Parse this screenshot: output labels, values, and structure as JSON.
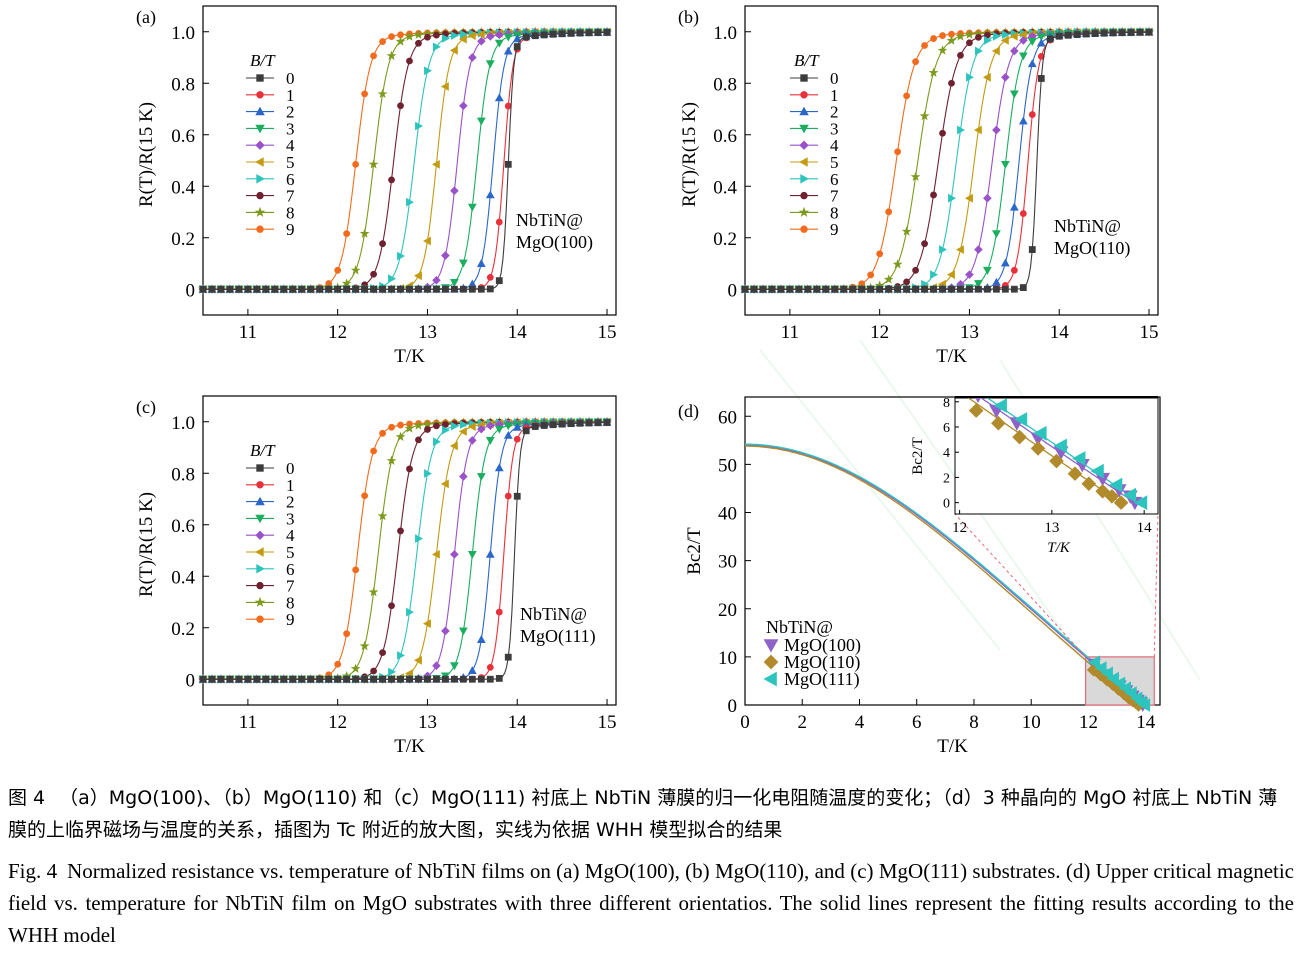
{
  "chart_data": [
    {
      "type": "line",
      "panel_label": "(a)",
      "xlabel": "T/K",
      "ylabel": "R(T)/R(15 K)",
      "xlim": [
        10.5,
        15.1
      ],
      "ylim": [
        -0.1,
        1.1
      ],
      "xticks": [
        "11",
        "12",
        "13",
        "14",
        "15"
      ],
      "yticks": [
        "0",
        "0.2",
        "0.4",
        "0.6",
        "0.8",
        "1.0"
      ],
      "legend_title": "B/T",
      "legend_placement": "top-left",
      "annotation": [
        "NbTiN@",
        "MgO(100)"
      ],
      "series": [
        {
          "name": "0",
          "color": "#3c3c3c",
          "marker": "square",
          "tc": 13.9,
          "width": 0.03
        },
        {
          "name": "1",
          "color": "#e8313a",
          "marker": "circle",
          "tc": 13.85,
          "width": 0.05
        },
        {
          "name": "2",
          "color": "#2a67c9",
          "marker": "triangle-up",
          "tc": 13.73,
          "width": 0.06
        },
        {
          "name": "3",
          "color": "#1aae5f",
          "marker": "triangle-down",
          "tc": 13.55,
          "width": 0.07
        },
        {
          "name": "4",
          "color": "#9a52c8",
          "marker": "diamond",
          "tc": 13.33,
          "width": 0.07
        },
        {
          "name": "5",
          "color": "#c39a12",
          "marker": "triangle-left",
          "tc": 13.1,
          "width": 0.07
        },
        {
          "name": "6",
          "color": "#2ec4be",
          "marker": "triangle-right",
          "tc": 12.85,
          "width": 0.08
        },
        {
          "name": "7",
          "color": "#6e2230",
          "marker": "circle",
          "tc": 12.62,
          "width": 0.08
        },
        {
          "name": "8",
          "color": "#7d9a1e",
          "marker": "star",
          "tc": 12.4,
          "width": 0.08
        },
        {
          "name": "9",
          "color": "#f26b1d",
          "marker": "circle",
          "tc": 12.2,
          "width": 0.08
        }
      ]
    },
    {
      "type": "line",
      "panel_label": "(b)",
      "xlabel": "T/K",
      "ylabel": "R(T)/R(15 K)",
      "xlim": [
        10.5,
        15.1
      ],
      "ylim": [
        -0.1,
        1.1
      ],
      "xticks": [
        "11",
        "12",
        "13",
        "14",
        "15"
      ],
      "yticks": [
        "0",
        "0.2",
        "0.4",
        "0.6",
        "0.8",
        "1.0"
      ],
      "legend_title": "B/T",
      "legend_placement": "top-left",
      "annotation": [
        "NbTiN@",
        "MgO(110)"
      ],
      "series": [
        {
          "name": "0",
          "color": "#3c3c3c",
          "marker": "square",
          "tc": 13.75,
          "width": 0.03
        },
        {
          "name": "1",
          "color": "#e8313a",
          "marker": "circle",
          "tc": 13.65,
          "width": 0.06
        },
        {
          "name": "2",
          "color": "#2a67c9",
          "marker": "triangle-up",
          "tc": 13.55,
          "width": 0.07
        },
        {
          "name": "3",
          "color": "#1aae5f",
          "marker": "triangle-down",
          "tc": 13.4,
          "width": 0.08
        },
        {
          "name": "4",
          "color": "#9a52c8",
          "marker": "diamond",
          "tc": 13.25,
          "width": 0.09
        },
        {
          "name": "5",
          "color": "#c39a12",
          "marker": "triangle-left",
          "tc": 13.05,
          "width": 0.09
        },
        {
          "name": "6",
          "color": "#2ec4be",
          "marker": "triangle-right",
          "tc": 12.85,
          "width": 0.09
        },
        {
          "name": "7",
          "color": "#6e2230",
          "marker": "circle",
          "tc": 12.65,
          "width": 0.1
        },
        {
          "name": "8",
          "color": "#7d9a1e",
          "marker": "star",
          "tc": 12.42,
          "width": 0.1
        },
        {
          "name": "9",
          "color": "#f26b1d",
          "marker": "circle",
          "tc": 12.18,
          "width": 0.1
        }
      ]
    },
    {
      "type": "line",
      "panel_label": "(c)",
      "xlabel": "T/K",
      "ylabel": "R(T)/R(15 K)",
      "xlim": [
        10.5,
        15.1
      ],
      "ylim": [
        -0.1,
        1.1
      ],
      "xticks": [
        "11",
        "12",
        "13",
        "14",
        "15"
      ],
      "yticks": [
        "0",
        "0.2",
        "0.4",
        "0.6",
        "0.8",
        "1.0"
      ],
      "legend_title": "B/T",
      "legend_placement": "top-left",
      "annotation": [
        "NbTiN@",
        "MgO(111)"
      ],
      "series": [
        {
          "name": "0",
          "color": "#3c3c3c",
          "marker": "square",
          "tc": 13.97,
          "width": 0.03
        },
        {
          "name": "1",
          "color": "#e8313a",
          "marker": "circle",
          "tc": 13.85,
          "width": 0.05
        },
        {
          "name": "2",
          "color": "#2a67c9",
          "marker": "triangle-up",
          "tc": 13.7,
          "width": 0.06
        },
        {
          "name": "3",
          "color": "#1aae5f",
          "marker": "triangle-down",
          "tc": 13.5,
          "width": 0.07
        },
        {
          "name": "4",
          "color": "#9a52c8",
          "marker": "diamond",
          "tc": 13.3,
          "width": 0.07
        },
        {
          "name": "5",
          "color": "#c39a12",
          "marker": "triangle-left",
          "tc": 13.1,
          "width": 0.08
        },
        {
          "name": "6",
          "color": "#2ec4be",
          "marker": "triangle-right",
          "tc": 12.88,
          "width": 0.08
        },
        {
          "name": "7",
          "color": "#6e2230",
          "marker": "circle",
          "tc": 12.67,
          "width": 0.08
        },
        {
          "name": "8",
          "color": "#7d9a1e",
          "marker": "star",
          "tc": 12.45,
          "width": 0.08
        },
        {
          "name": "9",
          "color": "#f26b1d",
          "marker": "circle",
          "tc": 12.22,
          "width": 0.08
        }
      ]
    },
    {
      "type": "line",
      "panel_label": "(d)",
      "xlabel": "T/K",
      "ylabel": "Bc2/T",
      "xlim": [
        0,
        14.5
      ],
      "ylim": [
        0,
        64
      ],
      "xticks": [
        "0",
        "2",
        "4",
        "6",
        "8",
        "10",
        "12",
        "14"
      ],
      "yticks": [
        "0",
        "10",
        "20",
        "30",
        "40",
        "50",
        "60"
      ],
      "legend_title": "NbTiN@",
      "legend_placement": "bottom-left",
      "series": [
        {
          "name": "MgO(100)",
          "color": "#8e63c8",
          "marker": "triangle-down",
          "tc": 13.9,
          "bc2_0": 54.0,
          "points": [
            [
              12.2,
              8.5
            ],
            [
              12.4,
              7.3
            ],
            [
              12.62,
              6.3
            ],
            [
              12.85,
              5.1
            ],
            [
              13.1,
              4.0
            ],
            [
              13.33,
              3.0
            ],
            [
              13.55,
              1.9
            ],
            [
              13.73,
              1.0
            ],
            [
              13.85,
              0.5
            ],
            [
              13.9,
              0.0
            ]
          ]
        },
        {
          "name": "MgO(110)",
          "color": "#b08a2b",
          "marker": "diamond",
          "tc": 13.75,
          "bc2_0": 53.8,
          "points": [
            [
              12.18,
              7.3
            ],
            [
              12.42,
              6.3
            ],
            [
              12.65,
              5.2
            ],
            [
              12.85,
              4.3
            ],
            [
              13.05,
              3.3
            ],
            [
              13.25,
              2.3
            ],
            [
              13.4,
              1.5
            ],
            [
              13.55,
              0.9
            ],
            [
              13.65,
              0.5
            ],
            [
              13.75,
              0.0
            ]
          ]
        },
        {
          "name": "MgO(111)",
          "color": "#2ec4be",
          "marker": "triangle-left",
          "tc": 13.97,
          "bc2_0": 54.2,
          "points": [
            [
              12.22,
              8.9
            ],
            [
              12.45,
              7.7
            ],
            [
              12.67,
              6.6
            ],
            [
              12.88,
              5.5
            ],
            [
              13.1,
              4.5
            ],
            [
              13.3,
              3.5
            ],
            [
              13.5,
              2.5
            ],
            [
              13.7,
              1.4
            ],
            [
              13.85,
              0.6
            ],
            [
              13.97,
              0.0
            ]
          ]
        }
      ],
      "inset": {
        "xlabel": "T/K",
        "ylabel": "Bc2/T",
        "xlim": [
          11.95,
          14.15
        ],
        "ylim": [
          -0.9,
          8.3
        ],
        "xticks": [
          "12",
          "13",
          "14"
        ],
        "yticks": [
          "0",
          "2",
          "4",
          "6",
          "8"
        ],
        "zoom_box": {
          "x": [
            11.9,
            14.3
          ],
          "y": [
            0,
            10
          ]
        }
      }
    }
  ],
  "caption_cn": {
    "label": "图 4",
    "text": "（a）MgO(100)、（b）MgO(110) 和（c）MgO(111) 衬底上 NbTiN 薄膜的归一化电阻随温度的变化；（d）3 种晶向的 MgO 衬底上 NbTiN 薄膜的上临界磁场与温度的关系，插图为 Tc 附近的放大图，实线为依据 WHH 模型拟合的结果"
  },
  "caption_en": {
    "label": "Fig. 4",
    "text": "Normalized resistance vs. temperature of NbTiN films on (a) MgO(100), (b) MgO(110), and (c) MgO(111) substrates. (d) Upper critical magnetic field vs. temperature for NbTiN film on MgO substrates with three different orientatios. The solid lines represent the fitting results according to the WHH model"
  }
}
